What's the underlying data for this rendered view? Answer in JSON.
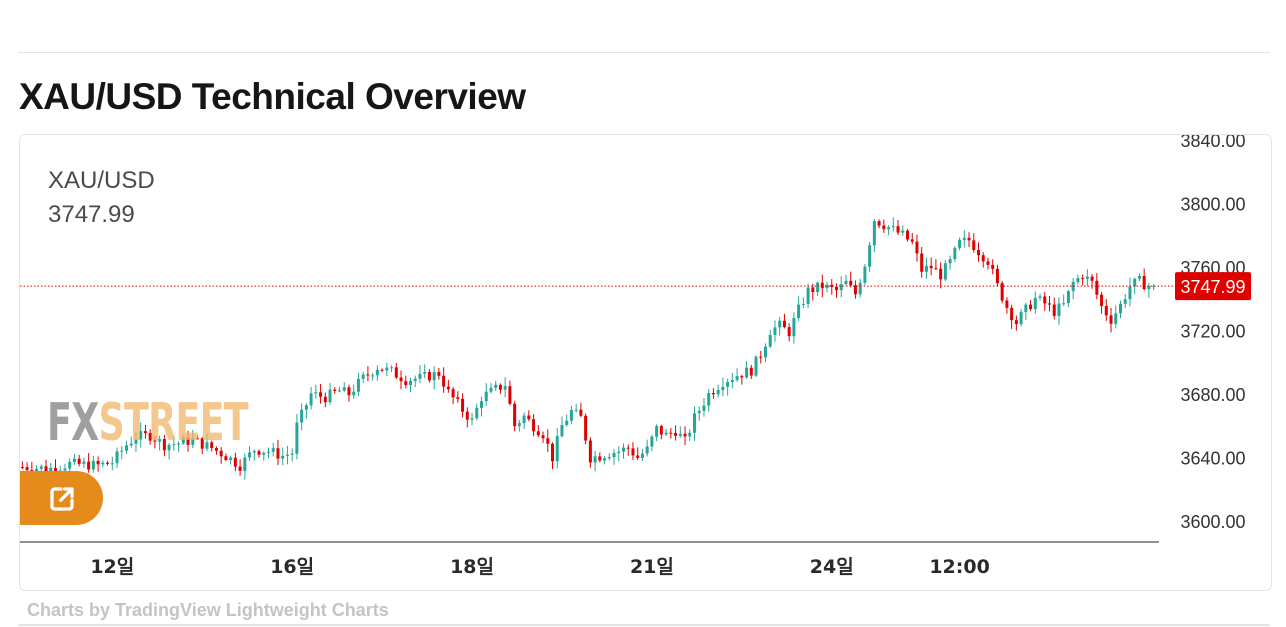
{
  "page": {
    "title": "XAU/USD Technical Overview",
    "credit": "Charts by TradingView Lightweight Charts"
  },
  "legend": {
    "symbol": "XAU/USD",
    "price": "3747.99"
  },
  "watermark": {
    "part1": "FX",
    "part2": "STREET"
  },
  "icons": {
    "external_link": "external-link-icon"
  },
  "colors": {
    "up": "#26a69a",
    "down": "#e00000",
    "price_badge": "#e00000",
    "accent_button": "#e58b1c"
  },
  "chart_data": {
    "type": "candlestick",
    "symbol": "XAU/USD",
    "last_price": 3747.99,
    "last_price_label": "3747.99",
    "y_axis": {
      "range": [
        3590,
        3842
      ],
      "ticks": [
        3600,
        3640,
        3680,
        3720,
        3760,
        3800,
        3840
      ],
      "tick_labels": [
        "3600.00",
        "3640.00",
        "3680.00",
        "3720.00",
        "3760.00",
        "3800.00",
        "3840.00"
      ]
    },
    "x_axis": {
      "tick_labels": [
        "12일",
        "16일",
        "18일",
        "21일",
        "24일",
        "12:00"
      ],
      "tick_index": [
        19,
        57,
        95,
        133,
        171,
        198
      ]
    },
    "grid": false,
    "close_path": [
      [
        0,
        3634
      ],
      [
        6,
        3633
      ],
      [
        10,
        3636
      ],
      [
        16,
        3635
      ],
      [
        19,
        3637
      ],
      [
        22,
        3648
      ],
      [
        24,
        3653
      ],
      [
        27,
        3654
      ],
      [
        30,
        3648
      ],
      [
        33,
        3649
      ],
      [
        36,
        3651
      ],
      [
        40,
        3646
      ],
      [
        43,
        3641
      ],
      [
        46,
        3635
      ],
      [
        49,
        3645
      ],
      [
        52,
        3644
      ],
      [
        55,
        3641
      ],
      [
        57,
        3643
      ],
      [
        58,
        3660
      ],
      [
        61,
        3680
      ],
      [
        64,
        3678
      ],
      [
        67,
        3682
      ],
      [
        69,
        3680
      ],
      [
        72,
        3690
      ],
      [
        75,
        3697
      ],
      [
        78,
        3694
      ],
      [
        81,
        3689
      ],
      [
        84,
        3690
      ],
      [
        88,
        3693
      ],
      [
        90,
        3681
      ],
      [
        93,
        3670
      ],
      [
        95,
        3663
      ],
      [
        97,
        3678
      ],
      [
        100,
        3683
      ],
      [
        102,
        3686
      ],
      [
        104,
        3660
      ],
      [
        106,
        3666
      ],
      [
        108,
        3660
      ],
      [
        110,
        3655
      ],
      [
        112,
        3640
      ],
      [
        114,
        3660
      ],
      [
        116,
        3669
      ],
      [
        118,
        3665
      ],
      [
        120,
        3640
      ],
      [
        122,
        3641
      ],
      [
        124,
        3643
      ],
      [
        126,
        3644
      ],
      [
        128,
        3646
      ],
      [
        130,
        3640
      ],
      [
        132,
        3645
      ],
      [
        134,
        3658
      ],
      [
        136,
        3654
      ],
      [
        138,
        3657
      ],
      [
        140,
        3650
      ],
      [
        142,
        3665
      ],
      [
        145,
        3680
      ],
      [
        148,
        3688
      ],
      [
        151,
        3692
      ],
      [
        154,
        3695
      ],
      [
        156,
        3705
      ],
      [
        158,
        3720
      ],
      [
        160,
        3723
      ],
      [
        162,
        3719
      ],
      [
        164,
        3733
      ],
      [
        166,
        3745
      ],
      [
        169,
        3748
      ],
      [
        172,
        3745
      ],
      [
        174,
        3750
      ],
      [
        176,
        3743
      ],
      [
        178,
        3762
      ],
      [
        180,
        3790
      ],
      [
        183,
        3785
      ],
      [
        186,
        3780
      ],
      [
        188,
        3775
      ],
      [
        190,
        3758
      ],
      [
        192,
        3760
      ],
      [
        194,
        3755
      ],
      [
        196,
        3763
      ],
      [
        198,
        3775
      ],
      [
        200,
        3777
      ],
      [
        202,
        3770
      ],
      [
        204,
        3764
      ],
      [
        206,
        3748
      ],
      [
        208,
        3735
      ],
      [
        210,
        3725
      ],
      [
        212,
        3733
      ],
      [
        214,
        3740
      ],
      [
        216,
        3737
      ],
      [
        218,
        3732
      ],
      [
        220,
        3736
      ],
      [
        222,
        3750
      ],
      [
        224,
        3755
      ],
      [
        226,
        3750
      ],
      [
        228,
        3735
      ],
      [
        230,
        3727
      ],
      [
        232,
        3736
      ],
      [
        234,
        3748
      ],
      [
        236,
        3751
      ],
      [
        238,
        3748
      ]
    ]
  }
}
